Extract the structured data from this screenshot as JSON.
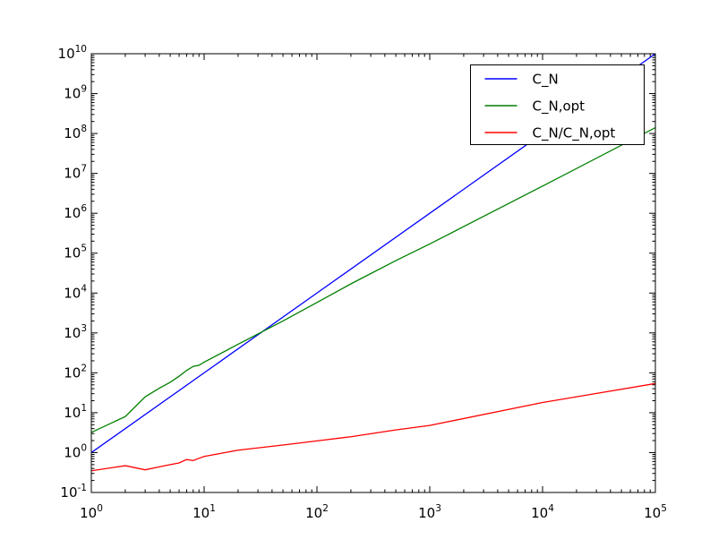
{
  "chart_data": {
    "type": "line",
    "title": "",
    "xlabel": "",
    "ylabel": "",
    "x_scale": "log",
    "y_scale": "log",
    "xlim": [
      1,
      100000
    ],
    "ylim": [
      0.1,
      10000000000
    ],
    "x_tick_exponents": [
      0,
      1,
      2,
      3,
      4,
      5
    ],
    "y_tick_exponents": [
      -1,
      0,
      1,
      2,
      3,
      4,
      5,
      6,
      7,
      8,
      9,
      10
    ],
    "tick_label_base": "10",
    "grid": false,
    "background_color": "#ffffff",
    "axes_color": "#000000",
    "legend": {
      "position": "upper right",
      "entries": [
        {
          "label": "C_N",
          "color": "#0000ff"
        },
        {
          "label": "C_N,opt",
          "color": "#007f00"
        },
        {
          "label": "C_N/C_N,opt",
          "color": "#ff0000"
        }
      ]
    },
    "series": [
      {
        "name": "C_N",
        "color": "#0000ff",
        "points": [
          [
            1,
            1
          ],
          [
            10,
            100
          ],
          [
            100,
            10000
          ],
          [
            1000,
            1000000
          ],
          [
            10000,
            100000000
          ],
          [
            100000,
            10000000000
          ]
        ]
      },
      {
        "name": "C_N,opt",
        "color": "#007f00",
        "points": [
          [
            1,
            3.2
          ],
          [
            2,
            8
          ],
          [
            3,
            25
          ],
          [
            4,
            41
          ],
          [
            5,
            58
          ],
          [
            6,
            82
          ],
          [
            7,
            115
          ],
          [
            8,
            145
          ],
          [
            9,
            155
          ],
          [
            10,
            185
          ],
          [
            20,
            520
          ],
          [
            50,
            2000
          ],
          [
            100,
            5800
          ],
          [
            200,
            17000
          ],
          [
            500,
            65000
          ],
          [
            1000,
            170000
          ],
          [
            10000,
            4800000
          ],
          [
            100000,
            140000000
          ]
        ]
      },
      {
        "name": "C_N/C_N,opt",
        "color": "#ff0000",
        "points": [
          [
            1,
            0.35
          ],
          [
            2,
            0.47
          ],
          [
            3,
            0.37
          ],
          [
            4,
            0.44
          ],
          [
            5,
            0.5
          ],
          [
            6,
            0.55
          ],
          [
            7,
            0.67
          ],
          [
            8,
            0.63
          ],
          [
            9,
            0.72
          ],
          [
            10,
            0.8
          ],
          [
            20,
            1.15
          ],
          [
            50,
            1.55
          ],
          [
            100,
            1.97
          ],
          [
            200,
            2.5
          ],
          [
            500,
            3.7
          ],
          [
            1000,
            4.8
          ],
          [
            10000,
            18
          ],
          [
            100000,
            54
          ]
        ]
      }
    ]
  }
}
